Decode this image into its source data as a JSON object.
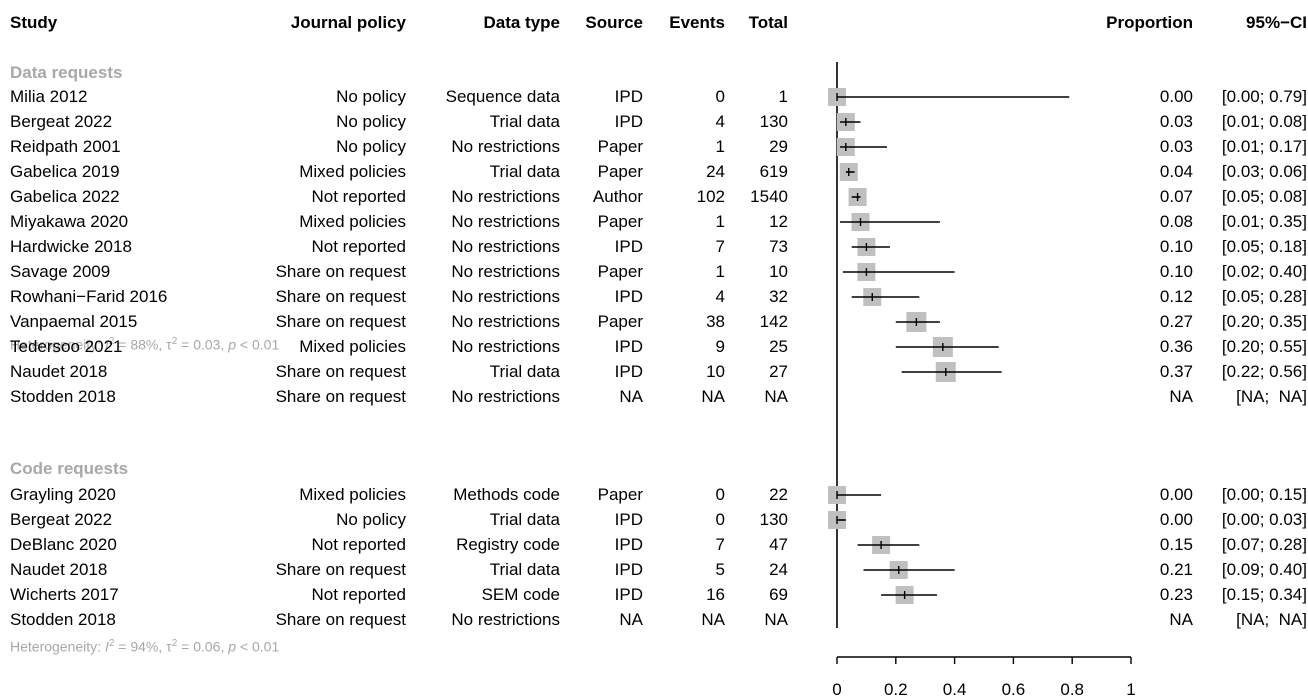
{
  "headers": {
    "study": "Study",
    "policy": "Journal policy",
    "dtype": "Data type",
    "source": "Source",
    "events": "Events",
    "total": "Total",
    "proportion": "Proportion",
    "ci": "95%−CI"
  },
  "groups": [
    {
      "label": "Data requests",
      "heterogeneity": {
        "prefix": "Heterogeneity: ",
        "i2_sym": "I",
        "i2": " = 88%, ",
        "tau_sym": "τ",
        "tau2": " = 0.03, ",
        "p_sym": "p",
        "p": " < 0.01"
      }
    },
    {
      "label": "Code requests",
      "heterogeneity": {
        "prefix": "Heterogeneity: ",
        "i2_sym": "I",
        "i2": " = 94%, ",
        "tau_sym": "τ",
        "tau2": " = 0.06, ",
        "p_sym": "p",
        "p": " < 0.01"
      }
    }
  ],
  "rows": [
    {
      "study": "Milia 2012",
      "policy": "No policy",
      "dtype": "Sequence data",
      "source": "IPD",
      "events": "0",
      "total": "1",
      "prop": "0.00",
      "ci": "[0.00; 0.79]"
    },
    {
      "study": "Bergeat 2022",
      "policy": "No policy",
      "dtype": "Trial data",
      "source": "IPD",
      "events": "4",
      "total": "130",
      "prop": "0.03",
      "ci": "[0.01; 0.08]"
    },
    {
      "study": "Reidpath 2001",
      "policy": "No policy",
      "dtype": "No restrictions",
      "source": "Paper",
      "events": "1",
      "total": "29",
      "prop": "0.03",
      "ci": "[0.01; 0.17]"
    },
    {
      "study": "Gabelica 2019",
      "policy": "Mixed policies",
      "dtype": "Trial data",
      "source": "Paper",
      "events": "24",
      "total": "619",
      "prop": "0.04",
      "ci": "[0.03; 0.06]"
    },
    {
      "study": "Gabelica 2022",
      "policy": "Not reported",
      "dtype": "No restrictions",
      "source": "Author",
      "events": "102",
      "total": "1540",
      "prop": "0.07",
      "ci": "[0.05; 0.08]"
    },
    {
      "study": "Miyakawa 2020",
      "policy": "Mixed policies",
      "dtype": "No restrictions",
      "source": "Paper",
      "events": "1",
      "total": "12",
      "prop": "0.08",
      "ci": "[0.01; 0.35]"
    },
    {
      "study": "Hardwicke 2018",
      "policy": "Not reported",
      "dtype": "No restrictions",
      "source": "IPD",
      "events": "7",
      "total": "73",
      "prop": "0.10",
      "ci": "[0.05; 0.18]"
    },
    {
      "study": "Savage 2009",
      "policy": "Share on request",
      "dtype": "No restrictions",
      "source": "Paper",
      "events": "1",
      "total": "10",
      "prop": "0.10",
      "ci": "[0.02; 0.40]"
    },
    {
      "study": "Rowhani−Farid 2016",
      "policy": "Share on request",
      "dtype": "No restrictions",
      "source": "IPD",
      "events": "4",
      "total": "32",
      "prop": "0.12",
      "ci": "[0.05; 0.28]"
    },
    {
      "study": "Vanpaemal 2015",
      "policy": "Share on request",
      "dtype": "No restrictions",
      "source": "Paper",
      "events": "38",
      "total": "142",
      "prop": "0.27",
      "ci": "[0.20; 0.35]"
    },
    {
      "study": "Tedersoo 2021",
      "policy": "Mixed policies",
      "dtype": "No restrictions",
      "source": "IPD",
      "events": "9",
      "total": "25",
      "prop": "0.36",
      "ci": "[0.20; 0.55]"
    },
    {
      "study": "Naudet 2018",
      "policy": "Share on request",
      "dtype": "Trial data",
      "source": "IPD",
      "events": "10",
      "total": "27",
      "prop": "0.37",
      "ci": "[0.22; 0.56]"
    },
    {
      "study": "Stodden 2018",
      "policy": "Share on request",
      "dtype": "No restrictions",
      "source": "NA",
      "events": "NA",
      "total": "NA",
      "prop": "NA",
      "ci": "[NA;  NA]"
    },
    {
      "study": "Grayling 2020",
      "policy": "Mixed policies",
      "dtype": "Methods code",
      "source": "Paper",
      "events": "0",
      "total": "22",
      "prop": "0.00",
      "ci": "[0.00; 0.15]"
    },
    {
      "study": "Bergeat 2022",
      "policy": "No policy",
      "dtype": "Trial data",
      "source": "IPD",
      "events": "0",
      "total": "130",
      "prop": "0.00",
      "ci": "[0.00; 0.03]"
    },
    {
      "study": "DeBlanc 2020",
      "policy": "Not reported",
      "dtype": "Registry code",
      "source": "IPD",
      "events": "7",
      "total": "47",
      "prop": "0.15",
      "ci": "[0.07; 0.28]"
    },
    {
      "study": "Naudet 2018",
      "policy": "Share on request",
      "dtype": "Trial data",
      "source": "IPD",
      "events": "5",
      "total": "24",
      "prop": "0.21",
      "ci": "[0.09; 0.40]"
    },
    {
      "study": "Wicherts 2017",
      "policy": "Not reported",
      "dtype": "SEM code",
      "source": "IPD",
      "events": "16",
      "total": "69",
      "prop": "0.23",
      "ci": "[0.15; 0.34]"
    },
    {
      "study": "Stodden 2018",
      "policy": "Share on request",
      "dtype": "No restrictions",
      "source": "NA",
      "events": "NA",
      "total": "NA",
      "prop": "NA",
      "ci": "[NA;  NA]"
    }
  ],
  "chart_data": {
    "type": "forest",
    "xlim": [
      0,
      1
    ],
    "xticks": [
      "0",
      "0.2",
      "0.4",
      "0.6",
      "0.8",
      "1"
    ],
    "reference_line": 0,
    "colors": {
      "box": "#c0c0c0",
      "line": "#000000",
      "group_text": "#a8a8a8"
    },
    "series": [
      {
        "name": "Data requests",
        "points": [
          {
            "study": "Milia 2012",
            "est": 0.0,
            "lo": 0.0,
            "hi": 0.79
          },
          {
            "study": "Bergeat 2022",
            "est": 0.03,
            "lo": 0.01,
            "hi": 0.08
          },
          {
            "study": "Reidpath 2001",
            "est": 0.03,
            "lo": 0.01,
            "hi": 0.17
          },
          {
            "study": "Gabelica 2019",
            "est": 0.04,
            "lo": 0.03,
            "hi": 0.06
          },
          {
            "study": "Gabelica 2022",
            "est": 0.07,
            "lo": 0.05,
            "hi": 0.08
          },
          {
            "study": "Miyakawa 2020",
            "est": 0.08,
            "lo": 0.01,
            "hi": 0.35
          },
          {
            "study": "Hardwicke 2018",
            "est": 0.1,
            "lo": 0.05,
            "hi": 0.18
          },
          {
            "study": "Savage 2009",
            "est": 0.1,
            "lo": 0.02,
            "hi": 0.4
          },
          {
            "study": "Rowhani-Farid 2016",
            "est": 0.12,
            "lo": 0.05,
            "hi": 0.28
          },
          {
            "study": "Vanpaemal 2015",
            "est": 0.27,
            "lo": 0.2,
            "hi": 0.35
          },
          {
            "study": "Tedersoo 2021",
            "est": 0.36,
            "lo": 0.2,
            "hi": 0.55
          },
          {
            "study": "Naudet 2018",
            "est": 0.37,
            "lo": 0.22,
            "hi": 0.56
          },
          {
            "study": "Stodden 2018",
            "est": null,
            "lo": null,
            "hi": null
          }
        ]
      },
      {
        "name": "Code requests",
        "points": [
          {
            "study": "Grayling 2020",
            "est": 0.0,
            "lo": 0.0,
            "hi": 0.15
          },
          {
            "study": "Bergeat 2022",
            "est": 0.0,
            "lo": 0.0,
            "hi": 0.03
          },
          {
            "study": "DeBlanc 2020",
            "est": 0.15,
            "lo": 0.07,
            "hi": 0.28
          },
          {
            "study": "Naudet 2018",
            "est": 0.21,
            "lo": 0.09,
            "hi": 0.4
          },
          {
            "study": "Wicherts 2017",
            "est": 0.23,
            "lo": 0.15,
            "hi": 0.34
          },
          {
            "study": "Stodden 2018",
            "est": null,
            "lo": null,
            "hi": null
          }
        ]
      }
    ]
  }
}
